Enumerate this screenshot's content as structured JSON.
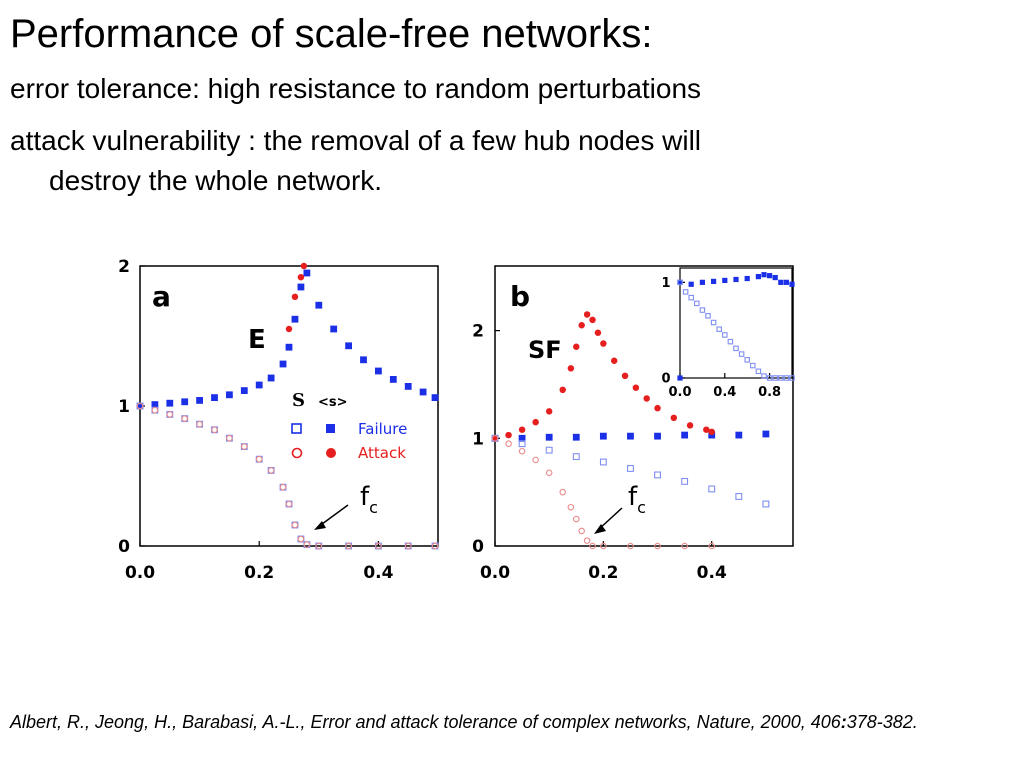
{
  "slide": {
    "title": "Performance of scale-free networks:",
    "bullet_1": "error tolerance: high resistance to random perturbations",
    "bullet_2_line_1": "attack vulnerability : the removal of a few hub nodes will",
    "bullet_2_line_2": "destroy the whole network.",
    "citation_before": "Albert, R., Jeong, H., Barabasi, A.-L., Error and attack tolerance of complex networks, Nature, 2000, 406",
    "citation_colon": ":",
    "citation_after": "378-382."
  },
  "colors": {
    "failure": "#1a2fe6",
    "failure_light": "#7f8ef2",
    "attack": "#e61e1e",
    "attack_light": "#e88a8a",
    "axis": "#000000"
  },
  "chart_data": [
    {
      "type": "scatter",
      "panel_label": "a",
      "network_label": "E",
      "xlim": [
        0,
        0.5
      ],
      "ylim": [
        0,
        2
      ],
      "x_ticks": [
        "0.0",
        "0.2",
        "0.4"
      ],
      "y_ticks": [
        "0",
        "1",
        "2"
      ],
      "legend": {
        "header_s": "S",
        "header_avg": "<s>",
        "entries": [
          {
            "label": "Failure",
            "color": "#1a2fe6"
          },
          {
            "label": "Attack",
            "color": "#e61e1e"
          }
        ]
      },
      "annotation": {
        "text": "f",
        "subscript": "c"
      },
      "series": [
        {
          "name": "Failure",
          "stat": "<s>",
          "x": [
            0.0,
            0.025,
            0.05,
            0.075,
            0.1,
            0.125,
            0.15,
            0.175,
            0.2,
            0.22,
            0.24,
            0.25,
            0.26,
            0.27,
            0.28,
            0.3,
            0.325,
            0.35,
            0.375,
            0.4,
            0.425,
            0.45,
            0.475,
            0.495
          ],
          "y": [
            1.0,
            1.01,
            1.02,
            1.03,
            1.04,
            1.06,
            1.08,
            1.11,
            1.15,
            1.2,
            1.3,
            1.42,
            1.62,
            1.85,
            1.95,
            1.72,
            1.55,
            1.43,
            1.33,
            1.25,
            1.19,
            1.14,
            1.1,
            1.06
          ]
        },
        {
          "name": "Attack",
          "stat": "<s>",
          "x": [
            0.25,
            0.26,
            0.27,
            0.275
          ],
          "y": [
            1.55,
            1.78,
            1.92,
            2.0
          ]
        },
        {
          "name": "Failure",
          "stat": "S",
          "x": [
            0.0,
            0.025,
            0.05,
            0.075,
            0.1,
            0.125,
            0.15,
            0.175,
            0.2,
            0.22,
            0.24,
            0.25,
            0.26,
            0.27,
            0.28,
            0.3,
            0.35,
            0.4,
            0.45,
            0.495
          ],
          "y": [
            1.0,
            0.97,
            0.94,
            0.91,
            0.87,
            0.83,
            0.77,
            0.71,
            0.62,
            0.54,
            0.42,
            0.3,
            0.15,
            0.05,
            0.01,
            0.0,
            0.0,
            0.0,
            0.0,
            0.0
          ]
        },
        {
          "name": "Attack",
          "stat": "S",
          "x": [
            0.0,
            0.025,
            0.05,
            0.075,
            0.1,
            0.125,
            0.15,
            0.175,
            0.2,
            0.22,
            0.24,
            0.25,
            0.26,
            0.27,
            0.28,
            0.3,
            0.35,
            0.4,
            0.45,
            0.495
          ],
          "y": [
            1.0,
            0.97,
            0.94,
            0.91,
            0.87,
            0.83,
            0.77,
            0.71,
            0.62,
            0.54,
            0.42,
            0.3,
            0.15,
            0.05,
            0.01,
            0.0,
            0.0,
            0.0,
            0.0,
            0.0
          ]
        }
      ]
    },
    {
      "type": "scatter",
      "panel_label": "b",
      "network_label": "SF",
      "xlim": [
        0,
        0.55
      ],
      "ylim": [
        0,
        2.6
      ],
      "x_ticks": [
        "0.0",
        "0.2",
        "0.4"
      ],
      "y_ticks": [
        "0",
        "1",
        "2"
      ],
      "annotation": {
        "text": "f",
        "subscript": "c"
      },
      "series": [
        {
          "name": "Failure",
          "stat": "<s>",
          "x": [
            0.0,
            0.05,
            0.1,
            0.15,
            0.2,
            0.25,
            0.3,
            0.35,
            0.4,
            0.45,
            0.5
          ],
          "y": [
            1.0,
            1.0,
            1.01,
            1.01,
            1.02,
            1.02,
            1.02,
            1.03,
            1.03,
            1.03,
            1.04
          ]
        },
        {
          "name": "Attack",
          "stat": "<s>",
          "x": [
            0.0,
            0.025,
            0.05,
            0.075,
            0.1,
            0.125,
            0.14,
            0.15,
            0.16,
            0.17,
            0.18,
            0.19,
            0.2,
            0.22,
            0.24,
            0.26,
            0.28,
            0.3,
            0.33,
            0.36,
            0.39,
            0.4
          ],
          "y": [
            1.0,
            1.03,
            1.08,
            1.15,
            1.25,
            1.45,
            1.65,
            1.85,
            2.05,
            2.15,
            2.1,
            1.98,
            1.88,
            1.72,
            1.58,
            1.47,
            1.37,
            1.28,
            1.19,
            1.12,
            1.08,
            1.06
          ]
        },
        {
          "name": "Failure",
          "stat": "S",
          "x": [
            0.0,
            0.05,
            0.1,
            0.15,
            0.2,
            0.25,
            0.3,
            0.35,
            0.4,
            0.45,
            0.5
          ],
          "y": [
            1.0,
            0.95,
            0.89,
            0.83,
            0.78,
            0.72,
            0.66,
            0.6,
            0.53,
            0.46,
            0.39
          ]
        },
        {
          "name": "Attack",
          "stat": "S",
          "x": [
            0.0,
            0.025,
            0.05,
            0.075,
            0.1,
            0.125,
            0.14,
            0.15,
            0.16,
            0.17,
            0.18,
            0.2,
            0.25,
            0.3,
            0.35,
            0.4
          ],
          "y": [
            1.0,
            0.95,
            0.88,
            0.8,
            0.68,
            0.5,
            0.36,
            0.25,
            0.14,
            0.05,
            0.0,
            0.0,
            0.0,
            0.0,
            0.0,
            0.0
          ]
        }
      ]
    },
    {
      "type": "scatter",
      "inset_of": "b",
      "xlim": [
        0,
        1
      ],
      "ylim": [
        0,
        1.15
      ],
      "x_ticks": [
        "0.0",
        "0.4",
        "0.8"
      ],
      "y_ticks": [
        "0",
        "1"
      ],
      "series": [
        {
          "name": "Failure",
          "stat": "<s>",
          "x": [
            0.0,
            0.1,
            0.2,
            0.3,
            0.4,
            0.5,
            0.6,
            0.7,
            0.75,
            0.8,
            0.85,
            0.9,
            0.95,
            1.0
          ],
          "y": [
            1.0,
            0.98,
            1.0,
            1.01,
            1.02,
            1.03,
            1.04,
            1.06,
            1.08,
            1.07,
            1.05,
            1.0,
            1.0,
            0.98
          ]
        },
        {
          "name": "Failure",
          "stat": "S",
          "x": [
            0.0,
            0.05,
            0.1,
            0.15,
            0.2,
            0.25,
            0.3,
            0.35,
            0.4,
            0.45,
            0.5,
            0.55,
            0.6,
            0.65,
            0.7,
            0.75,
            0.8,
            0.85,
            0.9,
            0.95,
            1.0
          ],
          "y": [
            1.0,
            0.9,
            0.84,
            0.78,
            0.71,
            0.65,
            0.58,
            0.51,
            0.45,
            0.38,
            0.31,
            0.25,
            0.19,
            0.13,
            0.07,
            0.02,
            0.0,
            0.0,
            0.0,
            0.0,
            0.0
          ]
        },
        {
          "name": "Failure",
          "stat": "S",
          "x": [
            0.0
          ],
          "y": [
            0.0
          ]
        }
      ]
    }
  ]
}
